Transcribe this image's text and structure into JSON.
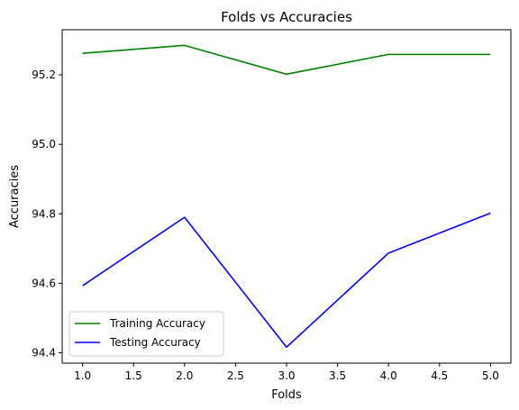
{
  "chart_data": {
    "type": "line",
    "title": "Folds vs Accuracies",
    "xlabel": "Folds",
    "ylabel": "Accuracies",
    "x": [
      1,
      2,
      3,
      4,
      5
    ],
    "xlim": [
      0.8,
      5.2
    ],
    "ylim": [
      94.37,
      95.33
    ],
    "xticks": [
      1.0,
      1.5,
      2.0,
      2.5,
      3.0,
      3.5,
      4.0,
      4.5,
      5.0
    ],
    "xtick_labels": [
      "1.0",
      "1.5",
      "2.0",
      "2.5",
      "3.0",
      "3.5",
      "4.0",
      "4.5",
      "5.0"
    ],
    "yticks": [
      94.4,
      94.6,
      94.8,
      95.0,
      95.2
    ],
    "ytick_labels": [
      "94.4",
      "94.6",
      "94.8",
      "95.0",
      "95.2"
    ],
    "grid": false,
    "legend_position": "lower-left",
    "series": [
      {
        "name": "Training Accuracy",
        "color": "#008000",
        "values": [
          95.262,
          95.285,
          95.202,
          95.259,
          95.259
        ]
      },
      {
        "name": "Testing Accuracy",
        "color": "#0000ff",
        "values": [
          94.593,
          94.79,
          94.416,
          94.687,
          94.802
        ]
      }
    ]
  }
}
